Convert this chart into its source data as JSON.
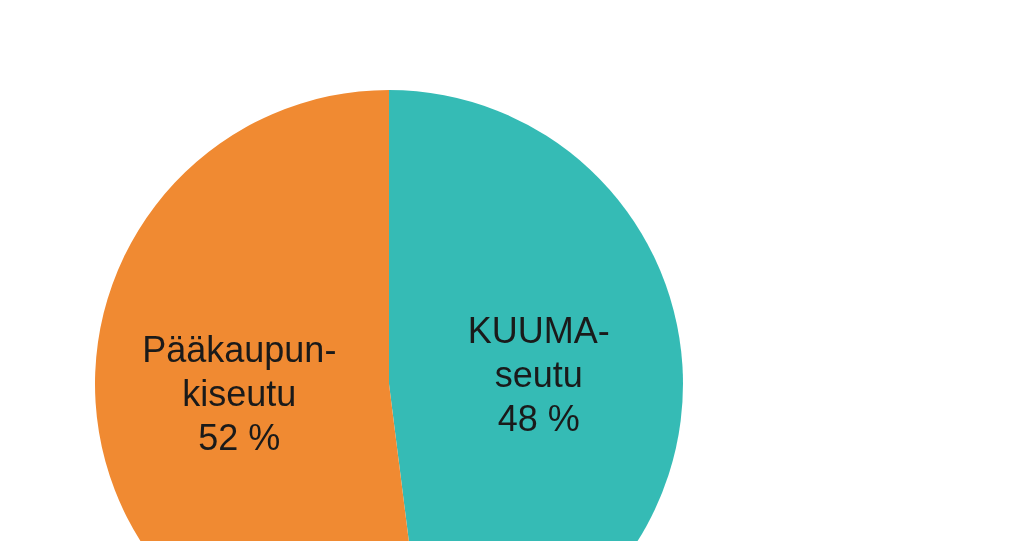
{
  "chart_data": {
    "type": "pie",
    "categories": [
      "KUUMA-\nseutu",
      "Pääkaupun-\nkiseutu"
    ],
    "values": [
      48,
      52
    ],
    "colors": [
      "#35bbb5",
      "#f08a32"
    ],
    "value_labels": [
      "48 %",
      "52 %"
    ],
    "legend": false
  }
}
